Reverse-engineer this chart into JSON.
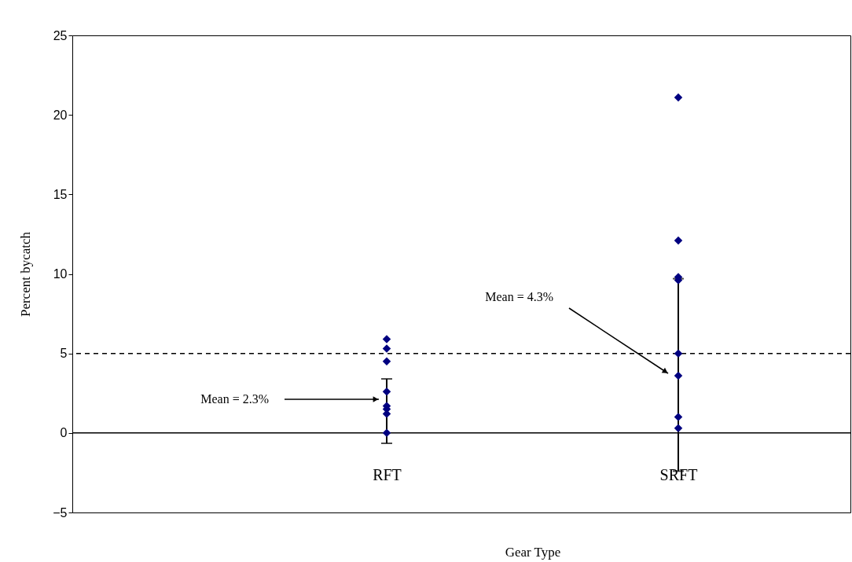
{
  "chart_data": {
    "type": "scatter",
    "xlabel": "Gear Type",
    "ylabel": "Percent bycatch",
    "categories": [
      "RFT",
      "SRFT"
    ],
    "series": [
      {
        "color": "#000080",
        "x": [
          "RFT",
          "RFT",
          "RFT",
          "RFT",
          "RFT",
          "RFT",
          "RFT",
          "RFT"
        ],
        "values": [
          5.9,
          5.3,
          4.5,
          2.6,
          1.7,
          1.5,
          1.2,
          0
        ],
        "errors": [
          null,
          null,
          null,
          null,
          null,
          [
            -0.65,
            3.4
          ],
          null,
          null
        ]
      },
      {
        "color": "#000080",
        "x": [
          "SRFT",
          "SRFT",
          "SRFT",
          "SRFT",
          "SRFT",
          "SRFT",
          "SRFT",
          "SRFT"
        ],
        "values": [
          21.1,
          12.1,
          9.8,
          9.6,
          5.0,
          3.6,
          1.0,
          0.3
        ],
        "errors": [
          null,
          null,
          null,
          [
            -2.4,
            9.7
          ],
          null,
          null,
          null,
          null
        ]
      }
    ],
    "ylim": [
      -5,
      25
    ],
    "yticks": [
      -5,
      0,
      5,
      10,
      15,
      20,
      25
    ],
    "ref_lines": [
      {
        "axis": "y",
        "value": 0,
        "line_style": "solid",
        "color": "#000000"
      },
      {
        "axis": "y",
        "value": 5,
        "line_style": "dashed",
        "color": "#000000"
      }
    ],
    "annotations": [
      "Mean = 2.3%",
      "Mean = 4.3%"
    ],
    "marker": "diamond",
    "grid": false,
    "legend": false
  }
}
